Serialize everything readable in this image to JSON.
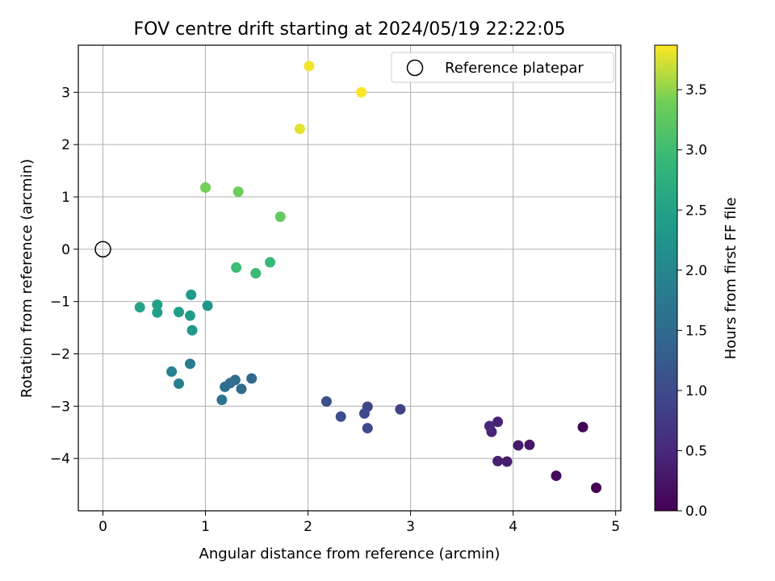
{
  "chart_data": {
    "type": "scatter",
    "title": "FOV centre drift starting at 2024/05/19 22:22:05",
    "xlabel": "Angular distance from reference (arcmin)",
    "ylabel": "Rotation from reference (arcmin)",
    "xlim": [
      -0.24,
      5.05
    ],
    "ylim": [
      -5.0,
      3.9
    ],
    "xticks": [
      0,
      1,
      2,
      3,
      4,
      5
    ],
    "xtick_labels": [
      "0",
      "1",
      "2",
      "3",
      "4",
      "5"
    ],
    "yticks": [
      -4,
      -3,
      -2,
      -1,
      0,
      1,
      2,
      3
    ],
    "ytick_labels": [
      "−4",
      "−3",
      "−2",
      "−1",
      "0",
      "1",
      "2",
      "3"
    ],
    "grid": true,
    "legend": {
      "placement": "top-right",
      "entries": [
        "Reference platepar"
      ]
    },
    "reference_point": {
      "x": 0,
      "y": 0,
      "label": "Reference platepar"
    },
    "colorbar": {
      "label": "Hours from first FF file",
      "range": [
        0.0,
        3.87
      ],
      "ticks": [
        0.0,
        0.5,
        1.0,
        1.5,
        2.0,
        2.5,
        3.0,
        3.5
      ],
      "tick_labels": [
        "0.0",
        "0.5",
        "1.0",
        "1.5",
        "2.0",
        "2.5",
        "3.0",
        "3.5"
      ],
      "colormap": "viridis"
    },
    "points": [
      {
        "x": 4.81,
        "y": -4.56,
        "hours": 0.0
      },
      {
        "x": 4.68,
        "y": -3.4,
        "hours": 0.05
      },
      {
        "x": 4.42,
        "y": -4.33,
        "hours": 0.12
      },
      {
        "x": 4.16,
        "y": -3.74,
        "hours": 0.27
      },
      {
        "x": 4.05,
        "y": -3.75,
        "hours": 0.32
      },
      {
        "x": 3.94,
        "y": -4.06,
        "hours": 0.35
      },
      {
        "x": 3.85,
        "y": -4.05,
        "hours": 0.38
      },
      {
        "x": 3.85,
        "y": -3.3,
        "hours": 0.42
      },
      {
        "x": 3.79,
        "y": -3.49,
        "hours": 0.45
      },
      {
        "x": 3.77,
        "y": -3.38,
        "hours": 0.48
      },
      {
        "x": 2.9,
        "y": -3.06,
        "hours": 0.88
      },
      {
        "x": 2.58,
        "y": -3.01,
        "hours": 0.92
      },
      {
        "x": 2.58,
        "y": -3.42,
        "hours": 0.95
      },
      {
        "x": 2.55,
        "y": -3.14,
        "hours": 0.98
      },
      {
        "x": 2.32,
        "y": -3.2,
        "hours": 1.02
      },
      {
        "x": 2.18,
        "y": -2.91,
        "hours": 1.06
      },
      {
        "x": 1.45,
        "y": -2.47,
        "hours": 1.47
      },
      {
        "x": 1.35,
        "y": -2.67,
        "hours": 1.5
      },
      {
        "x": 1.29,
        "y": -2.5,
        "hours": 1.53
      },
      {
        "x": 1.24,
        "y": -2.56,
        "hours": 1.56
      },
      {
        "x": 1.19,
        "y": -2.63,
        "hours": 1.59
      },
      {
        "x": 1.16,
        "y": -2.88,
        "hours": 1.62
      },
      {
        "x": 0.85,
        "y": -2.19,
        "hours": 1.83
      },
      {
        "x": 0.74,
        "y": -2.57,
        "hours": 1.87
      },
      {
        "x": 0.67,
        "y": -2.34,
        "hours": 1.91
      },
      {
        "x": 1.02,
        "y": -1.08,
        "hours": 2.28
      },
      {
        "x": 0.87,
        "y": -1.55,
        "hours": 2.32
      },
      {
        "x": 0.86,
        "y": -0.87,
        "hours": 2.35
      },
      {
        "x": 0.85,
        "y": -1.27,
        "hours": 2.38
      },
      {
        "x": 0.74,
        "y": -1.2,
        "hours": 2.42
      },
      {
        "x": 0.53,
        "y": -1.21,
        "hours": 2.45
      },
      {
        "x": 0.53,
        "y": -1.06,
        "hours": 2.48
      },
      {
        "x": 0.36,
        "y": -1.11,
        "hours": 2.52
      },
      {
        "x": 1.63,
        "y": -0.25,
        "hours": 2.92
      },
      {
        "x": 1.49,
        "y": -0.46,
        "hours": 2.95
      },
      {
        "x": 1.3,
        "y": -0.35,
        "hours": 2.98
      },
      {
        "x": 1.73,
        "y": 0.62,
        "hours": 3.3
      },
      {
        "x": 1.32,
        "y": 1.1,
        "hours": 3.36
      },
      {
        "x": 1.0,
        "y": 1.18,
        "hours": 3.4
      },
      {
        "x": 1.92,
        "y": 2.3,
        "hours": 3.78
      },
      {
        "x": 2.01,
        "y": 3.5,
        "hours": 3.83
      },
      {
        "x": 2.52,
        "y": 3.0,
        "hours": 3.86
      }
    ]
  }
}
